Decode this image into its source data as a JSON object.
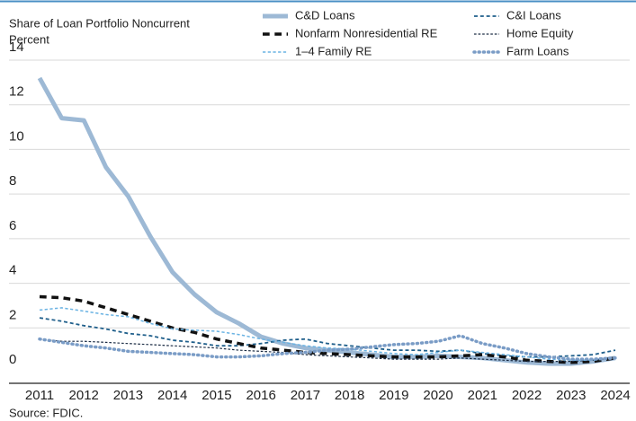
{
  "chart_data": {
    "type": "line",
    "title": "Share of Loan Portfolio Noncurrent",
    "y_label": "Percent",
    "source": "Source: FDIC.",
    "categories": [
      "2011",
      null,
      "2012",
      null,
      "2013",
      null,
      "2014",
      null,
      "2015",
      null,
      "2016",
      null,
      "2017",
      null,
      "2018",
      null,
      "2019",
      null,
      "2020",
      null,
      "2021",
      null,
      "2022",
      null,
      "2023",
      null,
      "2024"
    ],
    "ylim": [
      0,
      14
    ],
    "yticks": [
      0,
      2,
      4,
      6,
      8,
      10,
      12,
      14
    ],
    "grid": true,
    "series": [
      {
        "name": "C&D Loans",
        "color": "#9db9d5",
        "style": "solid",
        "line_width": 5,
        "values": [
          13.2,
          11.4,
          11.3,
          9.2,
          7.9,
          6.1,
          4.5,
          3.5,
          2.7,
          2.2,
          1.6,
          1.3,
          1.1,
          1.0,
          0.9,
          0.8,
          0.7,
          0.7,
          0.75,
          0.7,
          0.65,
          0.55,
          0.45,
          0.4,
          0.4,
          0.5,
          0.65
        ]
      },
      {
        "name": "C&I Loans",
        "color": "#1f5f8b",
        "style": "dashed",
        "line_width": 1.8,
        "values": [
          2.45,
          2.3,
          2.1,
          1.95,
          1.75,
          1.65,
          1.45,
          1.35,
          1.2,
          1.2,
          1.3,
          1.45,
          1.5,
          1.3,
          1.2,
          1.1,
          1.0,
          1.0,
          0.95,
          1.0,
          0.85,
          0.75,
          0.7,
          0.7,
          0.75,
          0.8,
          1.0
        ]
      },
      {
        "name": "Nonfarm Nonresidential RE",
        "color": "#111111",
        "style": "dashed",
        "line_width": 3.5,
        "values": [
          3.4,
          3.35,
          3.2,
          2.9,
          2.6,
          2.3,
          2.0,
          1.8,
          1.5,
          1.3,
          1.1,
          1.0,
          0.9,
          0.85,
          0.8,
          0.75,
          0.7,
          0.7,
          0.7,
          0.75,
          0.8,
          0.7,
          0.55,
          0.5,
          0.45,
          0.5,
          0.65
        ]
      },
      {
        "name": "Home Equity",
        "color": "#1c2d45",
        "style": "dashed",
        "line_width": 1.2,
        "values": [
          1.5,
          1.4,
          1.4,
          1.35,
          1.3,
          1.25,
          1.2,
          1.15,
          1.1,
          1.0,
          0.95,
          0.9,
          0.8,
          0.75,
          0.7,
          0.65,
          0.6,
          0.6,
          0.6,
          0.65,
          0.6,
          0.55,
          0.5,
          0.5,
          0.5,
          0.55,
          0.65
        ]
      },
      {
        "name": "1–4 Family RE",
        "color": "#6ab3e3",
        "style": "dashed",
        "line_width": 1.5,
        "values": [
          2.8,
          2.9,
          2.75,
          2.6,
          2.5,
          2.2,
          1.95,
          1.9,
          1.85,
          1.7,
          1.5,
          1.35,
          1.2,
          1.1,
          1.05,
          0.95,
          0.85,
          0.8,
          0.9,
          1.0,
          0.9,
          0.8,
          0.7,
          0.6,
          0.55,
          0.55,
          0.65
        ]
      },
      {
        "name": "Farm Loans",
        "color": "#7a9cc6",
        "style": "dotted",
        "line_width": 3.5,
        "values": [
          1.5,
          1.35,
          1.2,
          1.1,
          0.95,
          0.9,
          0.85,
          0.8,
          0.7,
          0.7,
          0.75,
          0.85,
          0.9,
          1.0,
          1.05,
          1.15,
          1.25,
          1.3,
          1.4,
          1.65,
          1.3,
          1.1,
          0.85,
          0.7,
          0.6,
          0.6,
          0.65
        ]
      }
    ]
  }
}
